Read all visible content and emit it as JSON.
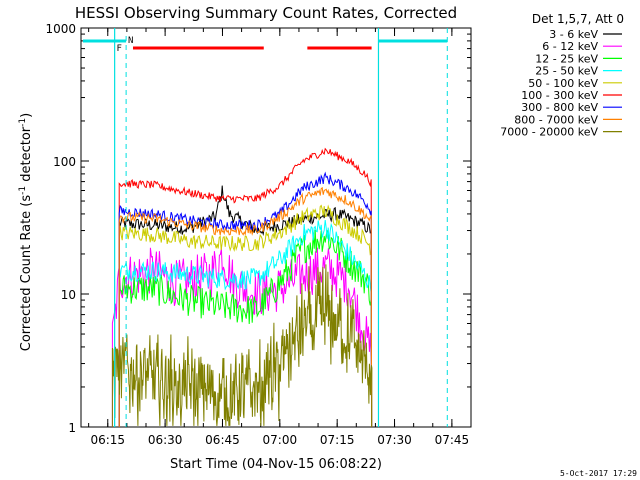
{
  "chart_data": {
    "type": "line",
    "title": "HESSI Observing Summary Count Rates, Corrected",
    "xlabel": "Start Time (04-Nov-15 06:08:22)",
    "ylabel_main": "Corrected Count Rate (s",
    "ylabel_sup1": "-1",
    "ylabel_mid": " detector",
    "ylabel_sup2": "-1",
    "ylabel_end": ")",
    "y_scale": "log",
    "ylim": [
      1,
      1000
    ],
    "xlim": [
      "06:08",
      "07:50"
    ],
    "x_ticks": [
      "06:15",
      "06:30",
      "06:45",
      "07:00",
      "07:15",
      "07:30",
      "07:45"
    ],
    "y_ticks": [
      "1",
      "10",
      "100",
      "1000"
    ],
    "legend_title": "Det 1,5,7, Att 0",
    "legend_position": "right",
    "timestamp": "5-Oct-2017 17:29",
    "flags": {
      "f_label": "F",
      "n_label": "N"
    },
    "series": [
      {
        "name": "3 - 6 keV",
        "color": "#000000",
        "values": [
          [
            6.3,
            34
          ],
          [
            6.45,
            33
          ],
          [
            6.6,
            31
          ],
          [
            6.72,
            38
          ],
          [
            6.75,
            60
          ],
          [
            6.78,
            40
          ],
          [
            6.9,
            30
          ],
          [
            7.0,
            33
          ],
          [
            7.15,
            38
          ],
          [
            7.25,
            40
          ],
          [
            7.35,
            34
          ],
          [
            7.4,
            30
          ]
        ]
      },
      {
        "name": "6 - 12 keV",
        "color": "#ff00ff",
        "values": [
          [
            6.27,
            4.5
          ],
          [
            6.3,
            13
          ],
          [
            6.45,
            15
          ],
          [
            6.55,
            12
          ],
          [
            6.7,
            14
          ],
          [
            6.75,
            20
          ],
          [
            6.8,
            12
          ],
          [
            6.9,
            10
          ],
          [
            7.0,
            11
          ],
          [
            7.1,
            14
          ],
          [
            7.2,
            16
          ],
          [
            7.3,
            12
          ],
          [
            7.37,
            5
          ],
          [
            7.4,
            3.5
          ]
        ]
      },
      {
        "name": "12 - 25 keV",
        "color": "#00ff00",
        "values": [
          [
            6.3,
            11
          ],
          [
            6.45,
            11
          ],
          [
            6.6,
            9
          ],
          [
            6.75,
            8
          ],
          [
            6.9,
            7.5
          ],
          [
            7.0,
            12
          ],
          [
            7.1,
            22
          ],
          [
            7.2,
            28
          ],
          [
            7.3,
            18
          ],
          [
            7.37,
            13
          ],
          [
            7.4,
            10
          ]
        ]
      },
      {
        "name": "25 - 50 keV",
        "color": "#00ffff",
        "values": [
          [
            6.3,
            15
          ],
          [
            6.45,
            15
          ],
          [
            6.6,
            14
          ],
          [
            6.75,
            13
          ],
          [
            6.9,
            13
          ],
          [
            7.0,
            18
          ],
          [
            7.1,
            28
          ],
          [
            7.2,
            32
          ],
          [
            7.3,
            20
          ],
          [
            7.37,
            14
          ],
          [
            7.4,
            11
          ]
        ]
      },
      {
        "name": "50 - 100 keV",
        "color": "#cccc00",
        "values": [
          [
            6.3,
            29
          ],
          [
            6.45,
            28
          ],
          [
            6.6,
            25
          ],
          [
            6.75,
            24
          ],
          [
            6.9,
            24
          ],
          [
            7.0,
            29
          ],
          [
            7.1,
            38
          ],
          [
            7.2,
            42
          ],
          [
            7.3,
            32
          ],
          [
            7.37,
            26
          ],
          [
            7.4,
            22
          ]
        ]
      },
      {
        "name": "100 - 300 keV",
        "color": "#ff0000",
        "values": [
          [
            6.3,
            68
          ],
          [
            6.45,
            66
          ],
          [
            6.6,
            58
          ],
          [
            6.75,
            52
          ],
          [
            6.9,
            52
          ],
          [
            7.0,
            65
          ],
          [
            7.1,
            100
          ],
          [
            7.2,
            120
          ],
          [
            7.3,
            100
          ],
          [
            7.37,
            80
          ],
          [
            7.4,
            68
          ]
        ]
      },
      {
        "name": "300 - 800 keV",
        "color": "#0000ff",
        "values": [
          [
            6.3,
            42
          ],
          [
            6.45,
            40
          ],
          [
            6.6,
            36
          ],
          [
            6.75,
            33
          ],
          [
            6.9,
            33
          ],
          [
            7.0,
            40
          ],
          [
            7.1,
            62
          ],
          [
            7.2,
            75
          ],
          [
            7.3,
            62
          ],
          [
            7.37,
            50
          ],
          [
            7.4,
            42
          ]
        ]
      },
      {
        "name": "800 - 7000 keV",
        "color": "#ff8000",
        "values": [
          [
            6.3,
            38
          ],
          [
            6.45,
            37
          ],
          [
            6.6,
            33
          ],
          [
            6.75,
            30
          ],
          [
            6.9,
            30
          ],
          [
            7.0,
            38
          ],
          [
            7.1,
            52
          ],
          [
            7.2,
            60
          ],
          [
            7.3,
            50
          ],
          [
            7.37,
            40
          ],
          [
            7.4,
            35
          ]
        ]
      },
      {
        "name": "7000 - 20000 keV",
        "color": "#808000",
        "values": [
          [
            6.27,
            2.8
          ],
          [
            6.45,
            2.2
          ],
          [
            6.6,
            1.9
          ],
          [
            6.75,
            1.8
          ],
          [
            6.9,
            1.9
          ],
          [
            7.0,
            2.8
          ],
          [
            7.1,
            5.5
          ],
          [
            7.2,
            7.5
          ],
          [
            7.3,
            5
          ],
          [
            7.37,
            3
          ],
          [
            7.4,
            2.5
          ]
        ]
      }
    ]
  }
}
